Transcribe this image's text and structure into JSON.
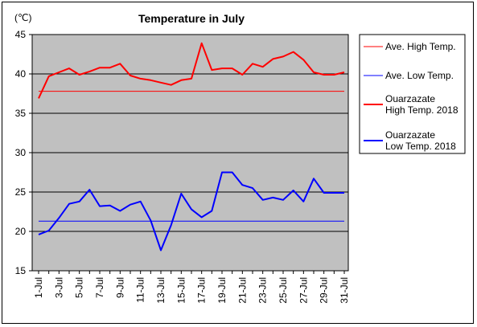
{
  "chart_data": {
    "type": "line",
    "title": "Temperature in July",
    "ylabel": "(℃)",
    "xlabel": "",
    "ylim": [
      15,
      45
    ],
    "yticks": [
      15,
      20,
      25,
      30,
      35,
      40,
      45
    ],
    "grid": true,
    "legend_position": "right",
    "x": [
      1,
      2,
      3,
      4,
      5,
      6,
      7,
      8,
      9,
      10,
      11,
      12,
      13,
      14,
      15,
      16,
      17,
      18,
      19,
      20,
      21,
      22,
      23,
      24,
      25,
      26,
      27,
      28,
      29,
      30,
      31
    ],
    "x_tick_labels": [
      "1-Jul",
      "3-Jul",
      "5-Jul",
      "7-Jul",
      "9-Jul",
      "11-Jul",
      "13-Jul",
      "15-Jul",
      "17-Jul",
      "19-Jul",
      "21-Jul",
      "23-Jul",
      "25-Jul",
      "27-Jul",
      "29-Jul",
      "31-Jul"
    ],
    "series": [
      {
        "name": "Ave. High Temp.",
        "color": "#ff0000",
        "style": "thin",
        "values": [
          37.8,
          37.8,
          37.8,
          37.8,
          37.8,
          37.8,
          37.8,
          37.8,
          37.8,
          37.8,
          37.8,
          37.8,
          37.8,
          37.8,
          37.8,
          37.8,
          37.8,
          37.8,
          37.8,
          37.8,
          37.8,
          37.8,
          37.8,
          37.8,
          37.8,
          37.8,
          37.8,
          37.8,
          37.8,
          37.8,
          37.8
        ]
      },
      {
        "name": "Ave. Low Temp.",
        "color": "#0000ff",
        "style": "thin",
        "values": [
          21.3,
          21.3,
          21.3,
          21.3,
          21.3,
          21.3,
          21.3,
          21.3,
          21.3,
          21.3,
          21.3,
          21.3,
          21.3,
          21.3,
          21.3,
          21.3,
          21.3,
          21.3,
          21.3,
          21.3,
          21.3,
          21.3,
          21.3,
          21.3,
          21.3,
          21.3,
          21.3,
          21.3,
          21.3,
          21.3,
          21.3
        ]
      },
      {
        "name": "Ouarzazate\nHigh Temp. 2018",
        "color": "#ff0000",
        "style": "thick",
        "values": [
          36.9,
          39.7,
          40.2,
          40.7,
          39.9,
          40.3,
          40.8,
          40.8,
          41.3,
          39.8,
          39.4,
          39.2,
          38.9,
          38.6,
          39.2,
          39.4,
          43.9,
          40.5,
          40.7,
          40.7,
          39.9,
          41.3,
          40.9,
          41.9,
          42.2,
          42.8,
          41.8,
          40.2,
          39.9,
          39.9,
          40.2
        ]
      },
      {
        "name": "Ouarzazate\nLow Temp. 2018",
        "color": "#0000ff",
        "style": "thick",
        "values": [
          19.6,
          20.1,
          21.7,
          23.5,
          23.8,
          25.3,
          23.2,
          23.3,
          22.6,
          23.4,
          23.8,
          21.4,
          17.6,
          20.8,
          24.8,
          22.8,
          21.8,
          22.6,
          27.5,
          27.5,
          25.9,
          25.5,
          24.0,
          24.3,
          24.0,
          25.2,
          23.8,
          26.7,
          24.9,
          24.9,
          24.9
        ]
      }
    ]
  }
}
